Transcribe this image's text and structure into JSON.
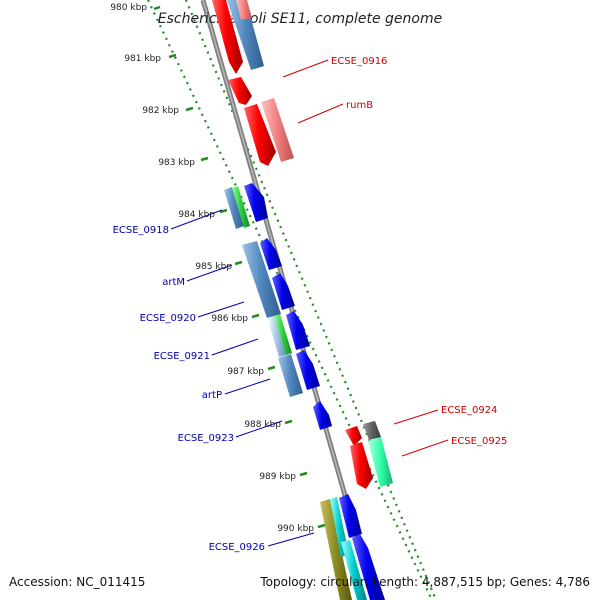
{
  "title": "Escherichia coli SE11, complete genome",
  "footer": {
    "accession": "Accession: NC_011415",
    "summary": "Topology: circular; Length: 4,887,515 bp; Genes: 4,786"
  },
  "ticks": [
    "980 kbp",
    "981 kbp",
    "982 kbp",
    "983 kbp",
    "984 kbp",
    "985 kbp",
    "986 kbp",
    "987 kbp",
    "988 kbp",
    "989 kbp",
    "990 kbp"
  ],
  "labels": {
    "outer": [
      "ECSE_0916",
      "rumB",
      "ECSE_0924",
      "ECSE_0925"
    ],
    "inner": [
      "ECSE_0918",
      "artM",
      "ECSE_0920",
      "ECSE_0921",
      "artP",
      "ECSE_0923",
      "ECSE_0926"
    ]
  },
  "colors": {
    "forward_strand_gene": "#ff0000",
    "reverse_strand_gene": "#0000ee",
    "forward_label": "#cc0000",
    "reverse_label": "#0000aa",
    "tick_dots": "#228b22",
    "backbone": "#808080"
  }
}
